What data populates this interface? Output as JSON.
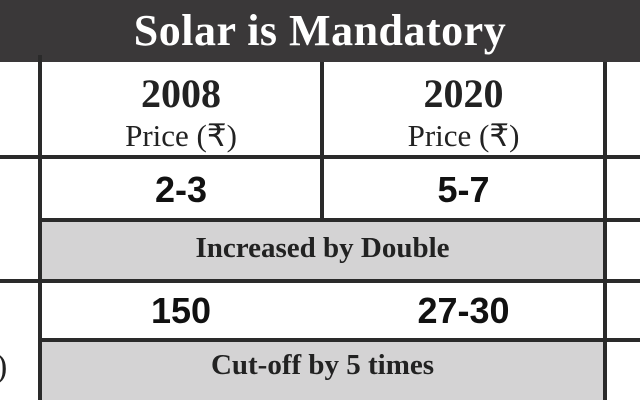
{
  "title": "Solar is Mandatory",
  "columns": [
    {
      "year": "2008",
      "sub": "Price (₹)"
    },
    {
      "year": "2020",
      "sub": "Price (₹)"
    }
  ],
  "rows": [
    {
      "values": [
        "2-3",
        "5-7"
      ],
      "note": "Increased by Double"
    },
    {
      "values": [
        "150",
        "27-30"
      ],
      "note": "Cut-off by 5 times"
    }
  ],
  "left_fragment": ")",
  "colors": {
    "title_bg": "#3a3839",
    "note_bg": "#d4d3d4",
    "border": "#2a2a2a"
  }
}
